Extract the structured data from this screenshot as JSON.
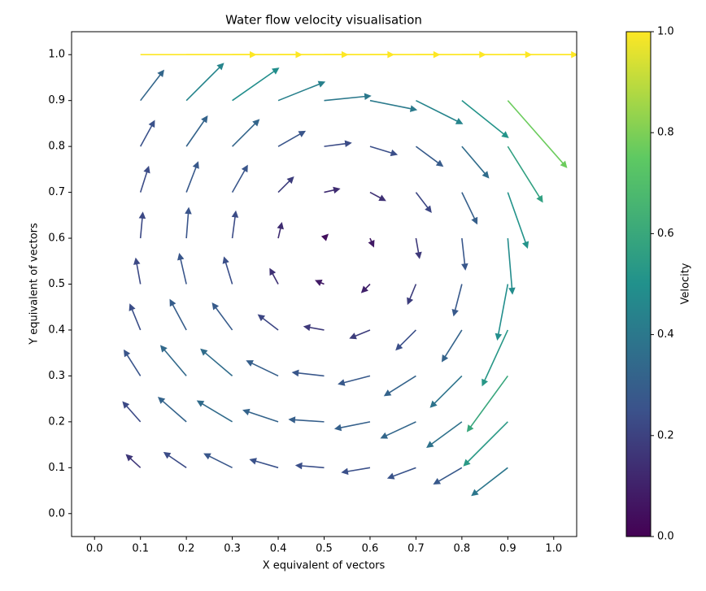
{
  "chart_data": {
    "type": "quiver",
    "title": "Water flow velocity visualisation",
    "xlabel": "X equivalent of vectors",
    "ylabel": "Y equivalent of vectors",
    "colorbar_label": "Velocity",
    "colormap": "viridis",
    "clim": [
      0,
      1
    ],
    "colorbar_ticks": [
      {
        "value": 0,
        "label": "0.0"
      },
      0.2,
      0.4,
      0.6,
      0.8,
      {
        "value": 1,
        "label": "1.0"
      }
    ],
    "xlim": [
      -0.05,
      1.05
    ],
    "ylim": [
      -0.05,
      1.05
    ],
    "xticks": [
      {
        "value": 0,
        "label": "0.0"
      },
      0.1,
      0.2,
      0.3,
      0.4,
      0.5,
      0.6,
      0.7,
      0.8,
      0.9,
      {
        "value": 1,
        "label": "1.0"
      }
    ],
    "yticks": [
      {
        "value": 0,
        "label": "0.0"
      },
      0.1,
      0.2,
      0.3,
      0.4,
      0.5,
      0.6,
      0.7,
      0.8,
      0.9,
      {
        "value": 1,
        "label": "1.0"
      }
    ],
    "x": [
      0.1,
      0.2,
      0.3,
      0.4,
      0.5,
      0.6,
      0.7,
      0.8,
      0.9,
      0.1,
      0.2,
      0.3,
      0.4,
      0.5,
      0.6,
      0.7,
      0.8,
      0.9,
      0.1,
      0.2,
      0.3,
      0.4,
      0.5,
      0.6,
      0.7,
      0.8,
      0.9,
      0.1,
      0.2,
      0.3,
      0.4,
      0.5,
      0.6,
      0.7,
      0.8,
      0.9,
      0.1,
      0.2,
      0.3,
      0.4,
      0.5,
      0.6,
      0.7,
      0.8,
      0.9,
      0.1,
      0.2,
      0.3,
      0.4,
      0.5,
      0.6,
      0.7,
      0.8,
      0.9,
      0.1,
      0.2,
      0.3,
      0.4,
      0.5,
      0.6,
      0.7,
      0.8,
      0.9,
      0.1,
      0.2,
      0.3,
      0.4,
      0.5,
      0.6,
      0.7,
      0.8,
      0.9,
      0.1,
      0.2,
      0.3,
      0.4,
      0.5,
      0.6,
      0.7,
      0.8,
      0.9,
      0.1,
      0.2,
      0.3,
      0.4,
      0.5,
      0.6,
      0.7,
      0.8,
      0.9
    ],
    "y": [
      1,
      1,
      1,
      1,
      1,
      1,
      1,
      1,
      1,
      0.9,
      0.9,
      0.9,
      0.9,
      0.9,
      0.9,
      0.9,
      0.9,
      0.9,
      0.8,
      0.8,
      0.8,
      0.8,
      0.8,
      0.8,
      0.8,
      0.8,
      0.8,
      0.7,
      0.7,
      0.7,
      0.7,
      0.7,
      0.7,
      0.7,
      0.7,
      0.7,
      0.6,
      0.6,
      0.6,
      0.6,
      0.6,
      0.6,
      0.6,
      0.6,
      0.6,
      0.5,
      0.5,
      0.5,
      0.5,
      0.5,
      0.5,
      0.5,
      0.5,
      0.5,
      0.4,
      0.4,
      0.4,
      0.4,
      0.4,
      0.4,
      0.4,
      0.4,
      0.4,
      0.3,
      0.3,
      0.3,
      0.3,
      0.3,
      0.3,
      0.3,
      0.3,
      0.3,
      0.2,
      0.2,
      0.2,
      0.2,
      0.2,
      0.2,
      0.2,
      0.2,
      0.2,
      0.1,
      0.1,
      0.1,
      0.1,
      0.1,
      0.1,
      0.1,
      0.1,
      0.1
    ],
    "u": [
      1,
      1,
      1,
      1,
      1,
      1,
      1,
      1,
      1,
      0.2,
      0.32,
      0.4,
      0.4,
      0.4,
      0.4,
      0.4,
      0.4,
      0.51,
      0.12,
      0.18,
      0.23,
      0.23,
      0.23,
      0.23,
      0.23,
      0.23,
      0.3,
      0.07,
      0.1,
      0.13,
      0.13,
      0.13,
      0.13,
      0.13,
      0.13,
      0.17,
      0.02,
      0.02,
      0.03,
      0.03,
      0.03,
      0.03,
      0.03,
      0.03,
      0.04,
      -0.04,
      -0.06,
      -0.07,
      -0.07,
      -0.07,
      -0.07,
      -0.07,
      -0.07,
      -0.09,
      -0.09,
      -0.14,
      -0.17,
      -0.17,
      -0.17,
      -0.17,
      -0.17,
      -0.17,
      -0.22,
      -0.14,
      -0.22,
      -0.27,
      -0.27,
      -0.27,
      -0.27,
      -0.27,
      -0.27,
      -0.35,
      -0.15,
      -0.24,
      -0.3,
      -0.3,
      -0.3,
      -0.3,
      -0.3,
      -0.3,
      -0.38,
      -0.12,
      -0.19,
      -0.24,
      -0.24,
      -0.24,
      -0.24,
      -0.24,
      -0.24,
      -0.31
    ],
    "v": [
      0,
      0,
      0,
      0,
      0,
      0,
      0,
      0,
      0,
      0.26,
      0.32,
      0.28,
      0.16,
      0.04,
      -0.08,
      -0.2,
      -0.32,
      -0.58,
      0.22,
      0.26,
      0.23,
      0.13,
      0.03,
      -0.07,
      -0.17,
      -0.27,
      -0.48,
      0.22,
      0.26,
      0.23,
      0.13,
      0.03,
      -0.07,
      -0.17,
      -0.27,
      -0.48,
      0.22,
      0.26,
      0.23,
      0.13,
      0.03,
      -0.07,
      -0.17,
      -0.27,
      -0.48,
      0.22,
      0.26,
      0.23,
      0.13,
      0.03,
      -0.07,
      -0.17,
      -0.27,
      -0.48,
      0.22,
      0.26,
      0.23,
      0.13,
      0.03,
      -0.07,
      -0.17,
      -0.27,
      -0.48,
      0.22,
      0.26,
      0.23,
      0.13,
      0.03,
      -0.07,
      -0.17,
      -0.27,
      -0.48,
      0.17,
      0.21,
      0.18,
      0.1,
      0.02,
      -0.06,
      -0.14,
      -0.22,
      -0.38,
      0.11,
      0.13,
      0.12,
      0.07,
      0.02,
      -0.04,
      -0.09,
      -0.14,
      -0.24
    ]
  }
}
